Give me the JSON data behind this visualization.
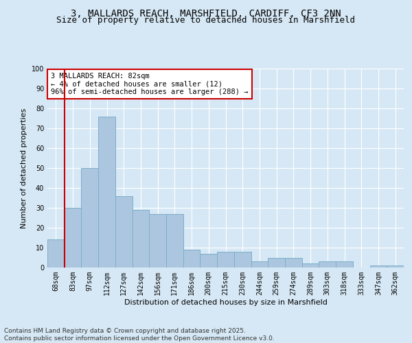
{
  "title_line1": "3, MALLARDS REACH, MARSHFIELD, CARDIFF, CF3 2NN",
  "title_line2": "Size of property relative to detached houses in Marshfield",
  "xlabel": "Distribution of detached houses by size in Marshfield",
  "ylabel": "Number of detached properties",
  "categories": [
    "68sqm",
    "83sqm",
    "97sqm",
    "112sqm",
    "127sqm",
    "142sqm",
    "156sqm",
    "171sqm",
    "186sqm",
    "200sqm",
    "215sqm",
    "230sqm",
    "244sqm",
    "259sqm",
    "274sqm",
    "289sqm",
    "303sqm",
    "318sqm",
    "333sqm",
    "347sqm",
    "362sqm"
  ],
  "values": [
    14,
    30,
    50,
    76,
    36,
    29,
    27,
    27,
    9,
    7,
    8,
    8,
    3,
    5,
    5,
    2,
    3,
    3,
    0,
    1,
    1
  ],
  "bar_color": "#adc6e0",
  "bar_edge_color": "#7aafc8",
  "highlight_color": "#cc0000",
  "annotation_text": "3 MALLARDS REACH: 82sqm\n← 4% of detached houses are smaller (12)\n96% of semi-detached houses are larger (288) →",
  "annotation_box_color": "#ffffff",
  "annotation_box_edge_color": "#cc0000",
  "background_color": "#d6e8f5",
  "plot_bg_color": "#d6e8f5",
  "grid_color": "#ffffff",
  "ylim": [
    0,
    100
  ],
  "yticks": [
    0,
    10,
    20,
    30,
    40,
    50,
    60,
    70,
    80,
    90,
    100
  ],
  "footer_text": "Contains HM Land Registry data © Crown copyright and database right 2025.\nContains public sector information licensed under the Open Government Licence v3.0.",
  "title_fontsize": 10,
  "subtitle_fontsize": 9,
  "axis_label_fontsize": 8,
  "tick_fontsize": 7,
  "annotation_fontsize": 7.5,
  "footer_fontsize": 6.5
}
